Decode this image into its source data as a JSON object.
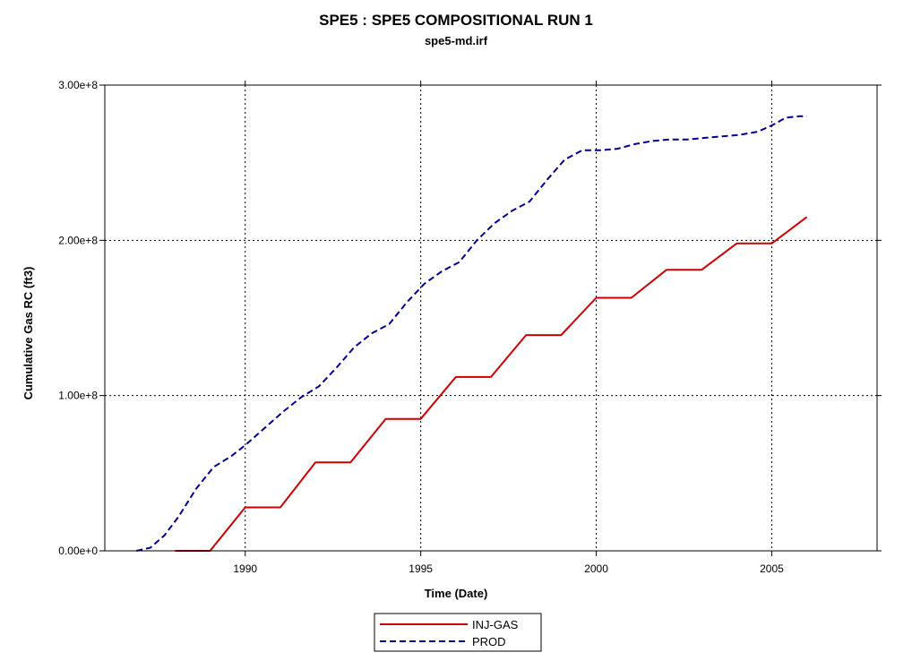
{
  "chart_data": {
    "type": "line",
    "title": "SPE5 :  SPE5 COMPOSITIONAL RUN 1",
    "subtitle": "spe5-md.irf",
    "xlabel": "Time (Date)",
    "ylabel": "Cumulative Gas RC (ft3)",
    "xlim": [
      1986.0,
      2008.0
    ],
    "ylim": [
      0,
      300000000
    ],
    "x_ticks": [
      1990,
      1995,
      2000,
      2005
    ],
    "x_tick_labels": [
      "1990",
      "1995",
      "2000",
      "2005"
    ],
    "y_ticks": [
      0,
      100000000,
      200000000,
      300000000
    ],
    "y_tick_labels": [
      "0.00e+0",
      "1.00e+8",
      "2.00e+8",
      "3.00e+8"
    ],
    "grid": true,
    "legend_position": "bottom-center",
    "series": [
      {
        "name": "INJ-GAS",
        "color": "#cc0000",
        "style": "solid",
        "points": [
          [
            1988.0,
            0
          ],
          [
            1989.0,
            0
          ],
          [
            1990.0,
            28000000
          ],
          [
            1991.0,
            28000000
          ],
          [
            1992.0,
            57000000
          ],
          [
            1993.0,
            57000000
          ],
          [
            1994.0,
            85000000
          ],
          [
            1995.0,
            85000000
          ],
          [
            1996.0,
            112000000
          ],
          [
            1997.0,
            112000000
          ],
          [
            1998.0,
            139000000
          ],
          [
            1999.0,
            139000000
          ],
          [
            2000.0,
            163000000
          ],
          [
            2001.0,
            163000000
          ],
          [
            2002.0,
            181000000
          ],
          [
            2003.0,
            181000000
          ],
          [
            2004.0,
            198000000
          ],
          [
            2005.0,
            198000000
          ],
          [
            2006.0,
            215000000
          ]
        ]
      },
      {
        "name": "PROD",
        "color": "#000099",
        "style": "dashed",
        "points": [
          [
            1986.9,
            0
          ],
          [
            1987.3,
            2000000
          ],
          [
            1987.7,
            10000000
          ],
          [
            1988.1,
            22000000
          ],
          [
            1988.6,
            40000000
          ],
          [
            1989.1,
            54000000
          ],
          [
            1989.6,
            61000000
          ],
          [
            1990.0,
            68000000
          ],
          [
            1990.6,
            80000000
          ],
          [
            1991.1,
            90000000
          ],
          [
            1991.6,
            99000000
          ],
          [
            1992.1,
            106000000
          ],
          [
            1992.6,
            118000000
          ],
          [
            1993.1,
            131000000
          ],
          [
            1993.6,
            140000000
          ],
          [
            1994.1,
            146000000
          ],
          [
            1994.6,
            160000000
          ],
          [
            1995.1,
            172000000
          ],
          [
            1995.6,
            180000000
          ],
          [
            1996.1,
            186000000
          ],
          [
            1996.6,
            200000000
          ],
          [
            1997.1,
            211000000
          ],
          [
            1997.6,
            219000000
          ],
          [
            1998.1,
            225000000
          ],
          [
            1998.6,
            239000000
          ],
          [
            1999.1,
            252000000
          ],
          [
            1999.6,
            258000000
          ],
          [
            2000.1,
            258000000
          ],
          [
            2000.6,
            259000000
          ],
          [
            2001.1,
            262000000
          ],
          [
            2001.6,
            264000000
          ],
          [
            2002.1,
            265000000
          ],
          [
            2002.6,
            265000000
          ],
          [
            2003.1,
            266000000
          ],
          [
            2003.6,
            267000000
          ],
          [
            2004.1,
            268000000
          ],
          [
            2004.6,
            270000000
          ],
          [
            2005.0,
            274000000
          ],
          [
            2005.4,
            279000000
          ],
          [
            2005.8,
            280000000
          ],
          [
            2006.0,
            280000000
          ]
        ]
      }
    ]
  }
}
